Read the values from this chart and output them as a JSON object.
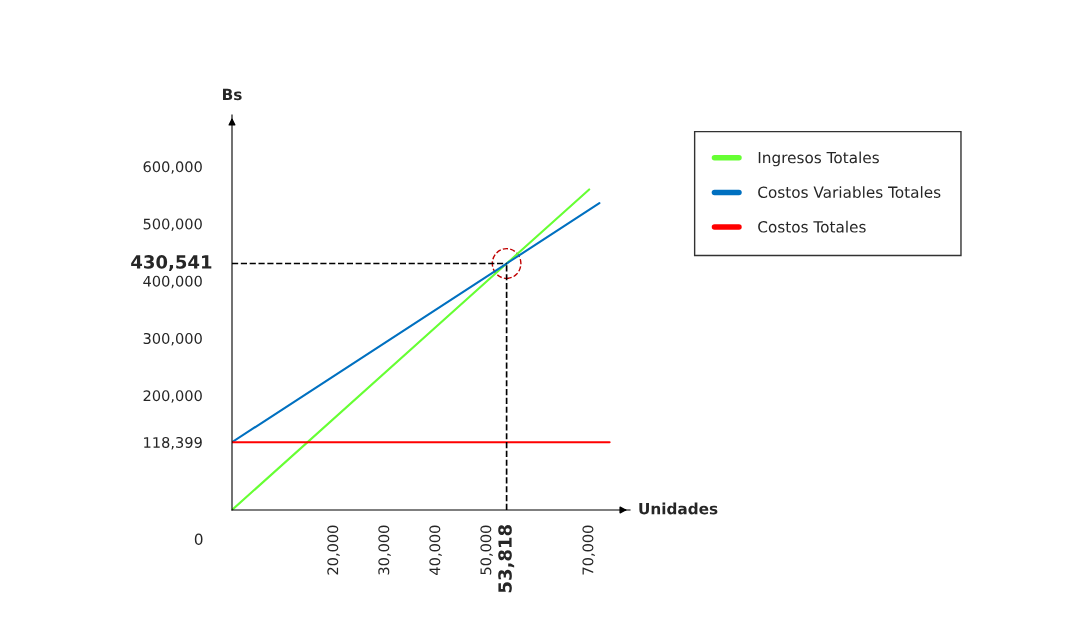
{
  "chart_data": {
    "type": "line",
    "series": [
      {
        "name": "Ingresos Totales",
        "color": "#66ff33",
        "x": [
          0,
          53818,
          70000
        ],
        "values": [
          0,
          430541,
          560000
        ]
      },
      {
        "name": "Costos Variables Totales",
        "color": "#0070c0",
        "x": [
          0,
          53818,
          72000
        ],
        "values": [
          118399,
          430541,
          536000
        ]
      },
      {
        "name": "Costos Totales",
        "color": "#ff0000",
        "x": [
          0,
          74000
        ],
        "values": [
          118399,
          118399
        ]
      }
    ],
    "xlabel": "Unidades",
    "ylabel": "Bs",
    "xlim": [
      0,
      78000
    ],
    "ylim": [
      0,
      690000
    ],
    "xticks": [
      {
        "value": 20000,
        "label": "20,000"
      },
      {
        "value": 30000,
        "label": "30,000"
      },
      {
        "value": 40000,
        "label": "40,000"
      },
      {
        "value": 50000,
        "label": "50,000"
      },
      {
        "value": 70000,
        "label": "70,000"
      }
    ],
    "yticks": [
      {
        "value": 118399,
        "label": "118,399"
      },
      {
        "value": 200000,
        "label": "200,000"
      },
      {
        "value": 300000,
        "label": "300,000"
      },
      {
        "value": 400000,
        "label": "400,000"
      },
      {
        "value": 500000,
        "label": "500,000"
      },
      {
        "value": 600000,
        "label": "600,000"
      }
    ],
    "ref_lines": [
      {
        "axis": "x",
        "value": 53818,
        "label": "53,818",
        "color": "#000000",
        "line_style": "dashed"
      },
      {
        "axis": "y",
        "value": 430541,
        "label": "430,541",
        "color": "#000000",
        "line_style": "dashed"
      }
    ],
    "annotations": [
      "0"
    ],
    "legend": "top right",
    "grid": false,
    "marker": "none",
    "line_style": "solid"
  }
}
